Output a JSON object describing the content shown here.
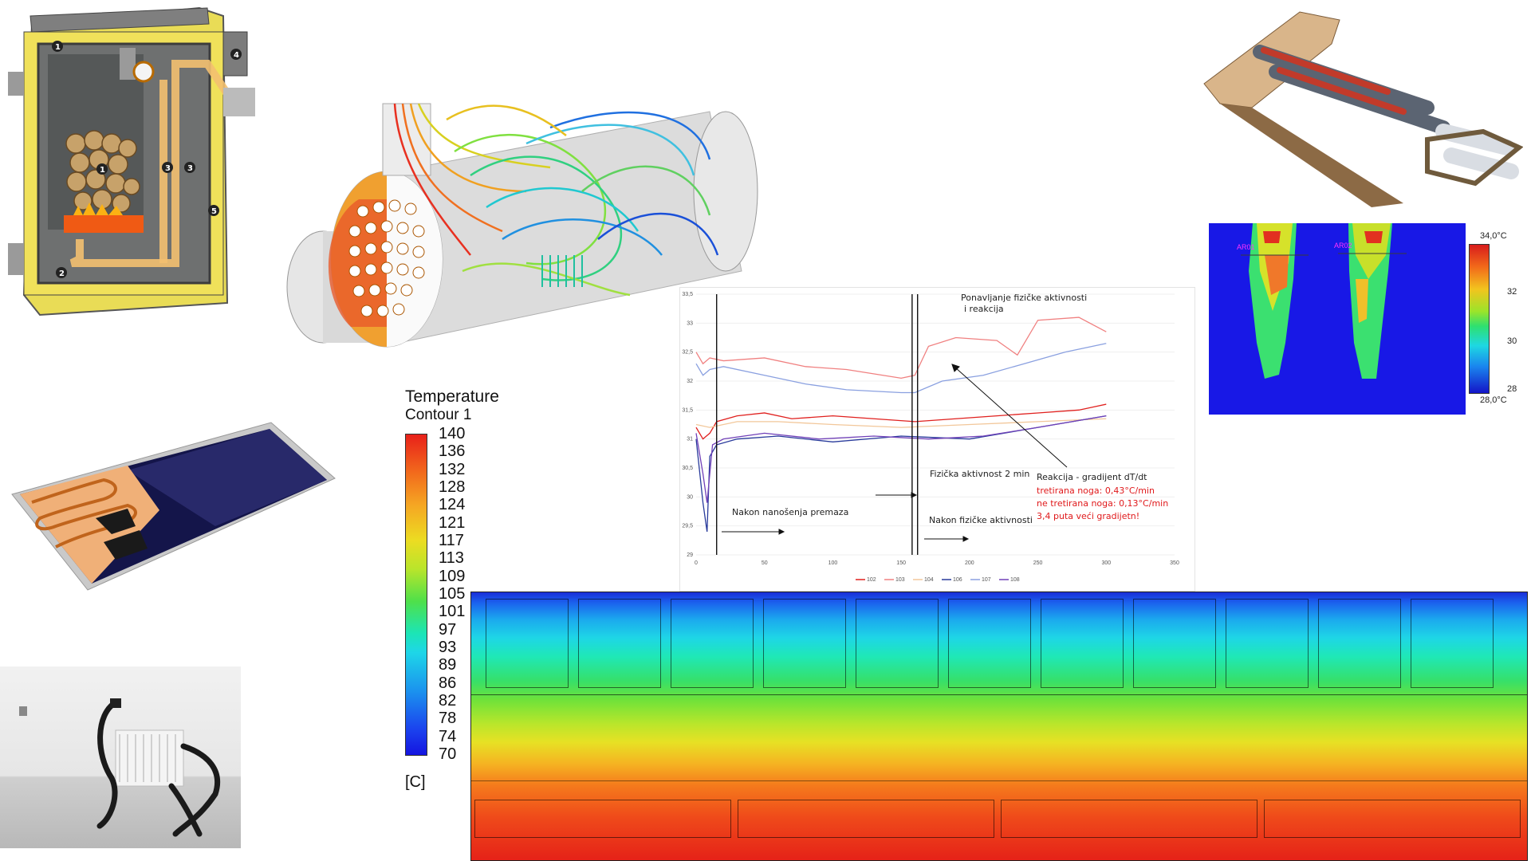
{
  "chart": {
    "title_annotations": {
      "repeat_line1": "Ponavljanje fizičke aktivnosti",
      "repeat_line2": "i reakcija",
      "after_coating": "Nakon nanošenja premaza",
      "activity_2min": "Fizička aktivnost 2 min",
      "after_activity": "Nakon fizičke aktivnosti",
      "reaction_title": "Reakcija - gradijent dT/dt",
      "treated": "tretirana noga: 0,43°C/min",
      "untreated": "ne tretirana noga: 0,13°C/min",
      "ratio": "3,4 puta veći gradijetn!"
    }
  },
  "chart_data": {
    "type": "line",
    "title": "",
    "xlabel": "",
    "ylabel": "",
    "xlim": [
      0,
      350
    ],
    "ylim": [
      29,
      33.5
    ],
    "x_ticks": [
      "0",
      "50",
      "100",
      "150",
      "200",
      "250",
      "300",
      "350"
    ],
    "y_ticks": [
      "29",
      "29,5",
      "30",
      "30,5",
      "31",
      "31,5",
      "32",
      "32,5",
      "33",
      "33,5"
    ],
    "vertical_markers": [
      15,
      158,
      162
    ],
    "series": [
      {
        "name": "102",
        "color": "#e0201e",
        "x": [
          0,
          5,
          10,
          15,
          30,
          50,
          70,
          100,
          130,
          160,
          190,
          220,
          250,
          280,
          300
        ],
        "y": [
          31.2,
          31.0,
          31.1,
          31.3,
          31.4,
          31.45,
          31.35,
          31.4,
          31.35,
          31.3,
          31.35,
          31.4,
          31.45,
          31.5,
          31.6
        ]
      },
      {
        "name": "103",
        "color": "#f08080",
        "x": [
          0,
          5,
          10,
          20,
          50,
          80,
          110,
          150,
          160,
          170,
          190,
          220,
          235,
          250,
          280,
          300
        ],
        "y": [
          32.5,
          32.3,
          32.4,
          32.35,
          32.4,
          32.25,
          32.2,
          32.05,
          32.1,
          32.6,
          32.75,
          32.7,
          32.45,
          33.05,
          33.1,
          32.85
        ]
      },
      {
        "name": "104",
        "color": "#f2c79a",
        "x": [
          0,
          10,
          30,
          60,
          100,
          150,
          200,
          250,
          300
        ],
        "y": [
          31.25,
          31.2,
          31.3,
          31.3,
          31.25,
          31.2,
          31.25,
          31.3,
          31.35
        ]
      },
      {
        "name": "106",
        "color": "#283a9b",
        "x": [
          0,
          5,
          8,
          10,
          15,
          30,
          60,
          100,
          150,
          200,
          250,
          300
        ],
        "y": [
          31.0,
          29.9,
          29.4,
          30.7,
          30.9,
          31.0,
          31.05,
          30.95,
          31.05,
          31.0,
          31.2,
          31.4
        ]
      },
      {
        "name": "107",
        "color": "#8aa0e0",
        "x": [
          0,
          5,
          10,
          20,
          50,
          80,
          110,
          150,
          160,
          180,
          210,
          240,
          270,
          300
        ],
        "y": [
          32.3,
          32.1,
          32.2,
          32.25,
          32.1,
          31.95,
          31.85,
          31.8,
          31.8,
          32.0,
          32.1,
          32.3,
          32.5,
          32.65
        ]
      },
      {
        "name": "108",
        "color": "#7040b8",
        "x": [
          0,
          5,
          8,
          12,
          20,
          50,
          90,
          130,
          170,
          210,
          250,
          300
        ],
        "y": [
          31.1,
          30.4,
          29.9,
          30.9,
          31.0,
          31.1,
          31.0,
          31.05,
          31.0,
          31.05,
          31.2,
          31.4
        ]
      }
    ]
  },
  "contour": {
    "title1": "Temperature",
    "title2": "Contour 1",
    "labels": [
      "140",
      "136",
      "132",
      "128",
      "124",
      "121",
      "117",
      "113",
      "109",
      "105",
      "101",
      "97",
      "93",
      "89",
      "86",
      "82",
      "78",
      "74",
      "70"
    ],
    "unit": "[C]"
  },
  "thermal": {
    "max_label": "34,0°C",
    "min_label": "28,0°C",
    "ticks": [
      "32",
      "30",
      "28"
    ],
    "roi1": "AR01",
    "roi2": "AR02"
  },
  "boiler_markers": [
    "1",
    "4",
    "1",
    "3",
    "3",
    "5",
    "2"
  ],
  "colors": {
    "accent_red": "#e0201e",
    "annotation_red": "#e0191b"
  }
}
